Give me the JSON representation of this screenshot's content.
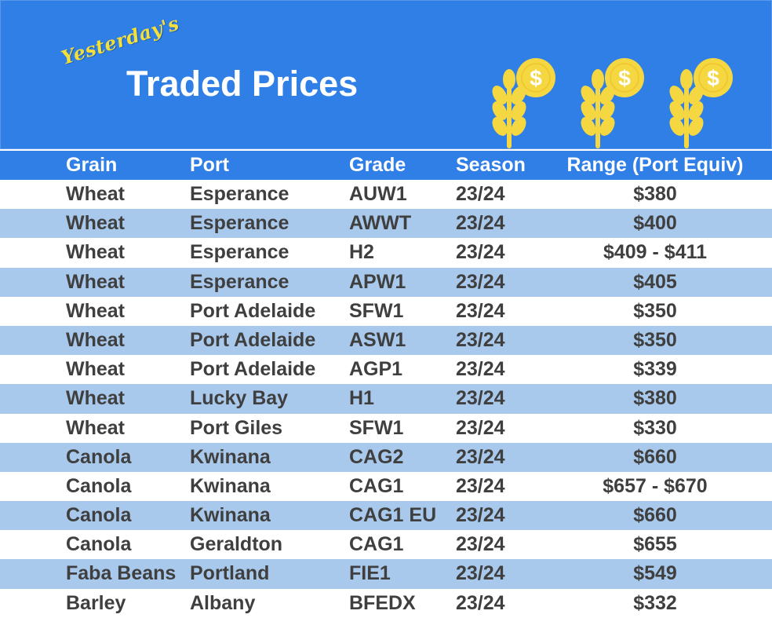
{
  "header": {
    "script_title": "Yesterday's",
    "main_title": "Traded Prices",
    "icons": [
      "wheat-dollar-icon",
      "wheat-dollar-icon",
      "wheat-dollar-icon"
    ],
    "background_color": "#2f7fe6",
    "accent_color": "#f5d742"
  },
  "table": {
    "columns": [
      "Grain",
      "Port",
      "Grade",
      "Season",
      "Range (Port Equiv)"
    ],
    "rows": [
      {
        "grain": "Wheat",
        "port": "Esperance",
        "grade": "AUW1",
        "season": "23/24",
        "range": "$380"
      },
      {
        "grain": "Wheat",
        "port": "Esperance",
        "grade": "AWWT",
        "season": "23/24",
        "range": "$400"
      },
      {
        "grain": "Wheat",
        "port": "Esperance",
        "grade": "H2",
        "season": "23/24",
        "range": "$409 - $411"
      },
      {
        "grain": "Wheat",
        "port": "Esperance",
        "grade": "APW1",
        "season": "23/24",
        "range": "$405"
      },
      {
        "grain": "Wheat",
        "port": "Port Adelaide",
        "grade": "SFW1",
        "season": "23/24",
        "range": "$350"
      },
      {
        "grain": "Wheat",
        "port": "Port Adelaide",
        "grade": "ASW1",
        "season": "23/24",
        "range": "$350"
      },
      {
        "grain": "Wheat",
        "port": "Port Adelaide",
        "grade": "AGP1",
        "season": "23/24",
        "range": "$339"
      },
      {
        "grain": "Wheat",
        "port": "Lucky Bay",
        "grade": "H1",
        "season": "23/24",
        "range": "$380"
      },
      {
        "grain": "Wheat",
        "port": "Port Giles",
        "grade": "SFW1",
        "season": "23/24",
        "range": "$330"
      },
      {
        "grain": "Canola",
        "port": "Kwinana",
        "grade": "CAG2",
        "season": "23/24",
        "range": "$660"
      },
      {
        "grain": "Canola",
        "port": "Kwinana",
        "grade": "CAG1",
        "season": "23/24",
        "range": "$657 - $670"
      },
      {
        "grain": "Canola",
        "port": "Kwinana",
        "grade": "CAG1 EU",
        "season": "23/24",
        "range": "$660"
      },
      {
        "grain": "Canola",
        "port": "Geraldton",
        "grade": "CAG1",
        "season": "23/24",
        "range": "$655"
      },
      {
        "grain": "Faba Beans",
        "port": "Portland",
        "grade": "FIE1",
        "season": "23/24",
        "range": "$549"
      },
      {
        "grain": "Barley",
        "port": "Albany",
        "grade": "BFEDX",
        "season": "23/24",
        "range": "$332"
      }
    ],
    "stripe_color": "#a9c9ec",
    "text_color": "#3f3f3f"
  }
}
